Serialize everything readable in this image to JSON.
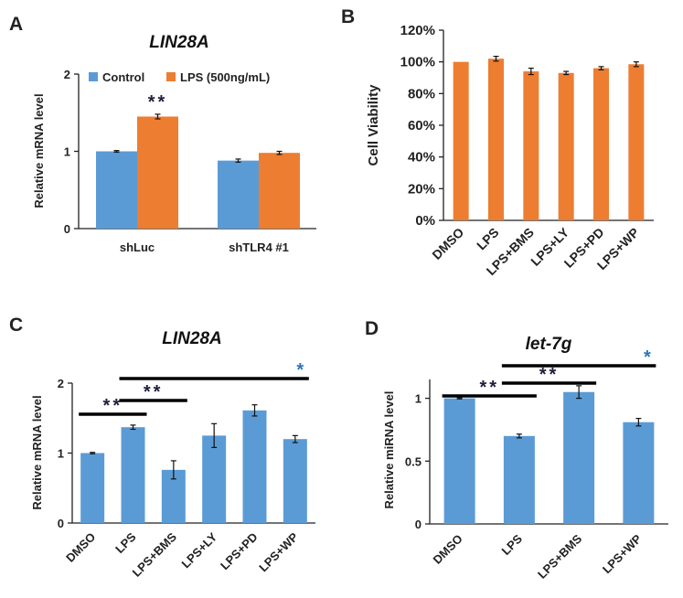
{
  "colors": {
    "blue": "#5b9bd5",
    "orange": "#ed7d31",
    "axis": "#222222",
    "err": "#111111",
    "star_blue": "#2e75b6",
    "star_dark": "#1f1f3d"
  },
  "chart_data": [
    {
      "panel": "A",
      "type": "bar",
      "title": "LIN28A",
      "ylabel": "Relative mRNA level",
      "xlabel": "",
      "ylim": [
        0,
        2
      ],
      "yticks": [
        "0",
        "1",
        "2"
      ],
      "categories": [
        "shLuc",
        "shTLR4 #1"
      ],
      "legend_position": "top",
      "series": [
        {
          "name": "Control",
          "color": "blue",
          "values": [
            1.0,
            0.88
          ],
          "errors": [
            0.01,
            0.02
          ]
        },
        {
          "name": "LPS (500ng/mL)",
          "color": "orange",
          "values": [
            1.45,
            0.98
          ],
          "errors": [
            0.03,
            0.02
          ]
        }
      ],
      "annotations": [
        {
          "text": "**",
          "category": 0,
          "series": 1
        }
      ]
    },
    {
      "panel": "B",
      "type": "bar",
      "title": "",
      "ylabel": "Cell Viability",
      "xlabel": "",
      "ylim": [
        0,
        120
      ],
      "yticks": [
        "0%",
        "20%",
        "40%",
        "60%",
        "80%",
        "100%",
        "120%"
      ],
      "categories": [
        "DMSO",
        "LPS",
        "LPS+BMS",
        "LPS+LY",
        "LPS+PD",
        "LPS+WP"
      ],
      "series": [
        {
          "name": "Cell Viability",
          "color": "orange",
          "values": [
            100,
            102,
            94,
            93,
            96,
            98.5
          ],
          "errors": [
            0,
            1.5,
            2,
            1,
            1,
            1.5
          ]
        }
      ]
    },
    {
      "panel": "C",
      "type": "bar",
      "title": "LIN28A",
      "ylabel": "Relative mRNA level",
      "xlabel": "",
      "ylim": [
        0,
        2
      ],
      "yticks": [
        "0",
        "1",
        "2"
      ],
      "categories": [
        "DMSO",
        "LPS",
        "LPS+BMS",
        "LPS+LY",
        "LPS+PD",
        "LPS+WP"
      ],
      "series": [
        {
          "name": "LIN28A",
          "color": "blue",
          "values": [
            1.0,
            1.37,
            0.76,
            1.25,
            1.61,
            1.2
          ],
          "errors": [
            0.01,
            0.03,
            0.13,
            0.17,
            0.08,
            0.05
          ]
        }
      ],
      "annotations": [
        {
          "text": "**",
          "from": 0,
          "to": 1
        },
        {
          "text": "**",
          "from": 1,
          "to": 2
        },
        {
          "text": "*",
          "from": 1,
          "to": 5
        }
      ]
    },
    {
      "panel": "D",
      "type": "bar",
      "title": "let-7g",
      "ylabel": "Relative miRNA level",
      "xlabel": "",
      "ylim": [
        0,
        1.15
      ],
      "yticks": [
        "0",
        "0.5",
        "1"
      ],
      "categories": [
        "DMSO",
        "LPS",
        "LPS+BMS",
        "LPS+WP"
      ],
      "series": [
        {
          "name": "let-7g",
          "color": "blue",
          "values": [
            1.0,
            0.7,
            1.05,
            0.81
          ],
          "errors": [
            0.005,
            0.015,
            0.05,
            0.03
          ]
        }
      ],
      "annotations": [
        {
          "text": "**",
          "from": 0,
          "to": 1
        },
        {
          "text": "**",
          "from": 1,
          "to": 2
        },
        {
          "text": "*",
          "from": 1,
          "to": 3
        }
      ]
    }
  ]
}
